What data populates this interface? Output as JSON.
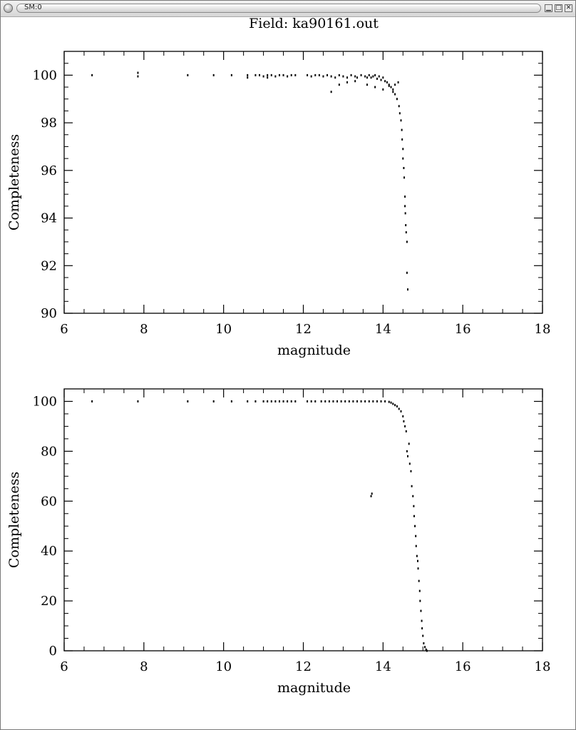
{
  "window": {
    "title": "SM:0",
    "buttons": {
      "minimize": "▁",
      "maximize": "□",
      "close": "✕"
    }
  },
  "figure_title": "Field: ka90161.out",
  "chart_data": [
    {
      "type": "scatter",
      "title": "Field: ka90161.out",
      "xlabel": "magnitude",
      "ylabel": "Completeness",
      "xlim": [
        6,
        18
      ],
      "ylim": [
        90,
        101
      ],
      "xticks": [
        6,
        8,
        10,
        12,
        14,
        16,
        18
      ],
      "yticks": [
        90,
        92,
        94,
        96,
        98,
        100
      ],
      "xminor": 0.5,
      "yminor": 0.5,
      "grid": false,
      "legend": "none",
      "series": [
        {
          "color": "#000000",
          "x": [
            6.7,
            7.85,
            7.85,
            9.1,
            9.75,
            10.2,
            10.6,
            10.6,
            10.8,
            10.9,
            11.0,
            11.1,
            11.1,
            11.2,
            11.3,
            11.4,
            11.5,
            11.6,
            11.7,
            11.8,
            12.1,
            12.2,
            12.3,
            12.4,
            12.5,
            12.6,
            12.7,
            12.8,
            12.9,
            13.0,
            13.1,
            13.2,
            13.3,
            13.35,
            13.45,
            13.55,
            13.6,
            13.65,
            13.7,
            13.75,
            13.8,
            13.85,
            13.9,
            13.95,
            14.0,
            14.05,
            14.1,
            14.15,
            14.2,
            14.25,
            14.3,
            14.35,
            14.4,
            14.42,
            14.45,
            14.47,
            14.48,
            14.5,
            14.5,
            14.52,
            14.53,
            14.55,
            14.55,
            14.56,
            14.57,
            14.58,
            14.6,
            14.6,
            14.62,
            12.7,
            12.9,
            13.1,
            13.3,
            13.6,
            13.8,
            14.0,
            14.15,
            14.25,
            14.3,
            14.38
          ],
          "y": [
            100.0,
            100.1,
            99.95,
            100.0,
            100.0,
            100.0,
            100.0,
            99.9,
            100.0,
            100.0,
            99.95,
            100.0,
            99.9,
            100.0,
            99.95,
            100.0,
            100.0,
            99.95,
            100.0,
            100.0,
            100.0,
            99.95,
            100.0,
            100.0,
            99.95,
            100.0,
            99.95,
            99.9,
            100.0,
            99.95,
            99.9,
            100.0,
            99.95,
            99.9,
            100.0,
            99.95,
            99.9,
            100.0,
            99.9,
            99.95,
            100.0,
            99.85,
            99.95,
            99.8,
            99.9,
            99.75,
            99.7,
            99.6,
            99.5,
            99.4,
            99.2,
            99.0,
            98.7,
            98.4,
            98.1,
            97.7,
            97.3,
            96.9,
            96.5,
            96.1,
            95.7,
            94.9,
            94.5,
            94.2,
            93.7,
            93.4,
            93.0,
            91.7,
            91.0,
            99.3,
            99.6,
            99.7,
            99.75,
            99.6,
            99.5,
            99.4,
            99.55,
            99.3,
            99.6,
            99.7
          ]
        }
      ]
    },
    {
      "type": "scatter",
      "title": "",
      "xlabel": "magnitude",
      "ylabel": "Completeness",
      "xlim": [
        6,
        18
      ],
      "ylim": [
        0,
        105
      ],
      "xticks": [
        6,
        8,
        10,
        12,
        14,
        16,
        18
      ],
      "yticks": [
        0,
        20,
        40,
        60,
        80,
        100
      ],
      "xminor": 0.5,
      "yminor": 5,
      "grid": false,
      "legend": "none",
      "series": [
        {
          "color": "#000000",
          "x": [
            6.7,
            7.85,
            9.1,
            9.75,
            10.2,
            10.6,
            10.8,
            11.0,
            11.1,
            11.2,
            11.3,
            11.4,
            11.5,
            11.6,
            11.7,
            11.8,
            12.1,
            12.2,
            12.3,
            12.45,
            12.55,
            12.65,
            12.75,
            12.85,
            12.95,
            13.05,
            13.15,
            13.25,
            13.35,
            13.45,
            13.55,
            13.65,
            13.75,
            13.85,
            13.95,
            14.05,
            14.15,
            14.2,
            14.25,
            14.3,
            14.35,
            14.4,
            14.45,
            14.5,
            14.52,
            14.55,
            14.58,
            14.6,
            14.62,
            14.65,
            14.67,
            14.7,
            14.72,
            14.75,
            14.77,
            14.78,
            14.8,
            14.82,
            14.83,
            14.85,
            14.87,
            14.88,
            14.9,
            14.92,
            14.93,
            14.95,
            14.97,
            14.98,
            15.0,
            15.02,
            15.05,
            15.08,
            15.1,
            13.7,
            13.72
          ],
          "y": [
            100,
            100,
            100,
            100,
            100,
            100,
            100,
            100,
            100,
            100,
            100,
            100,
            100,
            100,
            100,
            100,
            100,
            100,
            100,
            100,
            100,
            100,
            100,
            100,
            100,
            100,
            100,
            100,
            100,
            100,
            100,
            100,
            100,
            100,
            100,
            100,
            99.8,
            99.5,
            99,
            98.5,
            98,
            97,
            96,
            94,
            92,
            90,
            88,
            80,
            78,
            83,
            75,
            72,
            66,
            62,
            58,
            54,
            50,
            46,
            42,
            38,
            36,
            33,
            28,
            24,
            20,
            16,
            12,
            9,
            6,
            3,
            1.5,
            0.5,
            0,
            62,
            63
          ]
        }
      ]
    }
  ]
}
